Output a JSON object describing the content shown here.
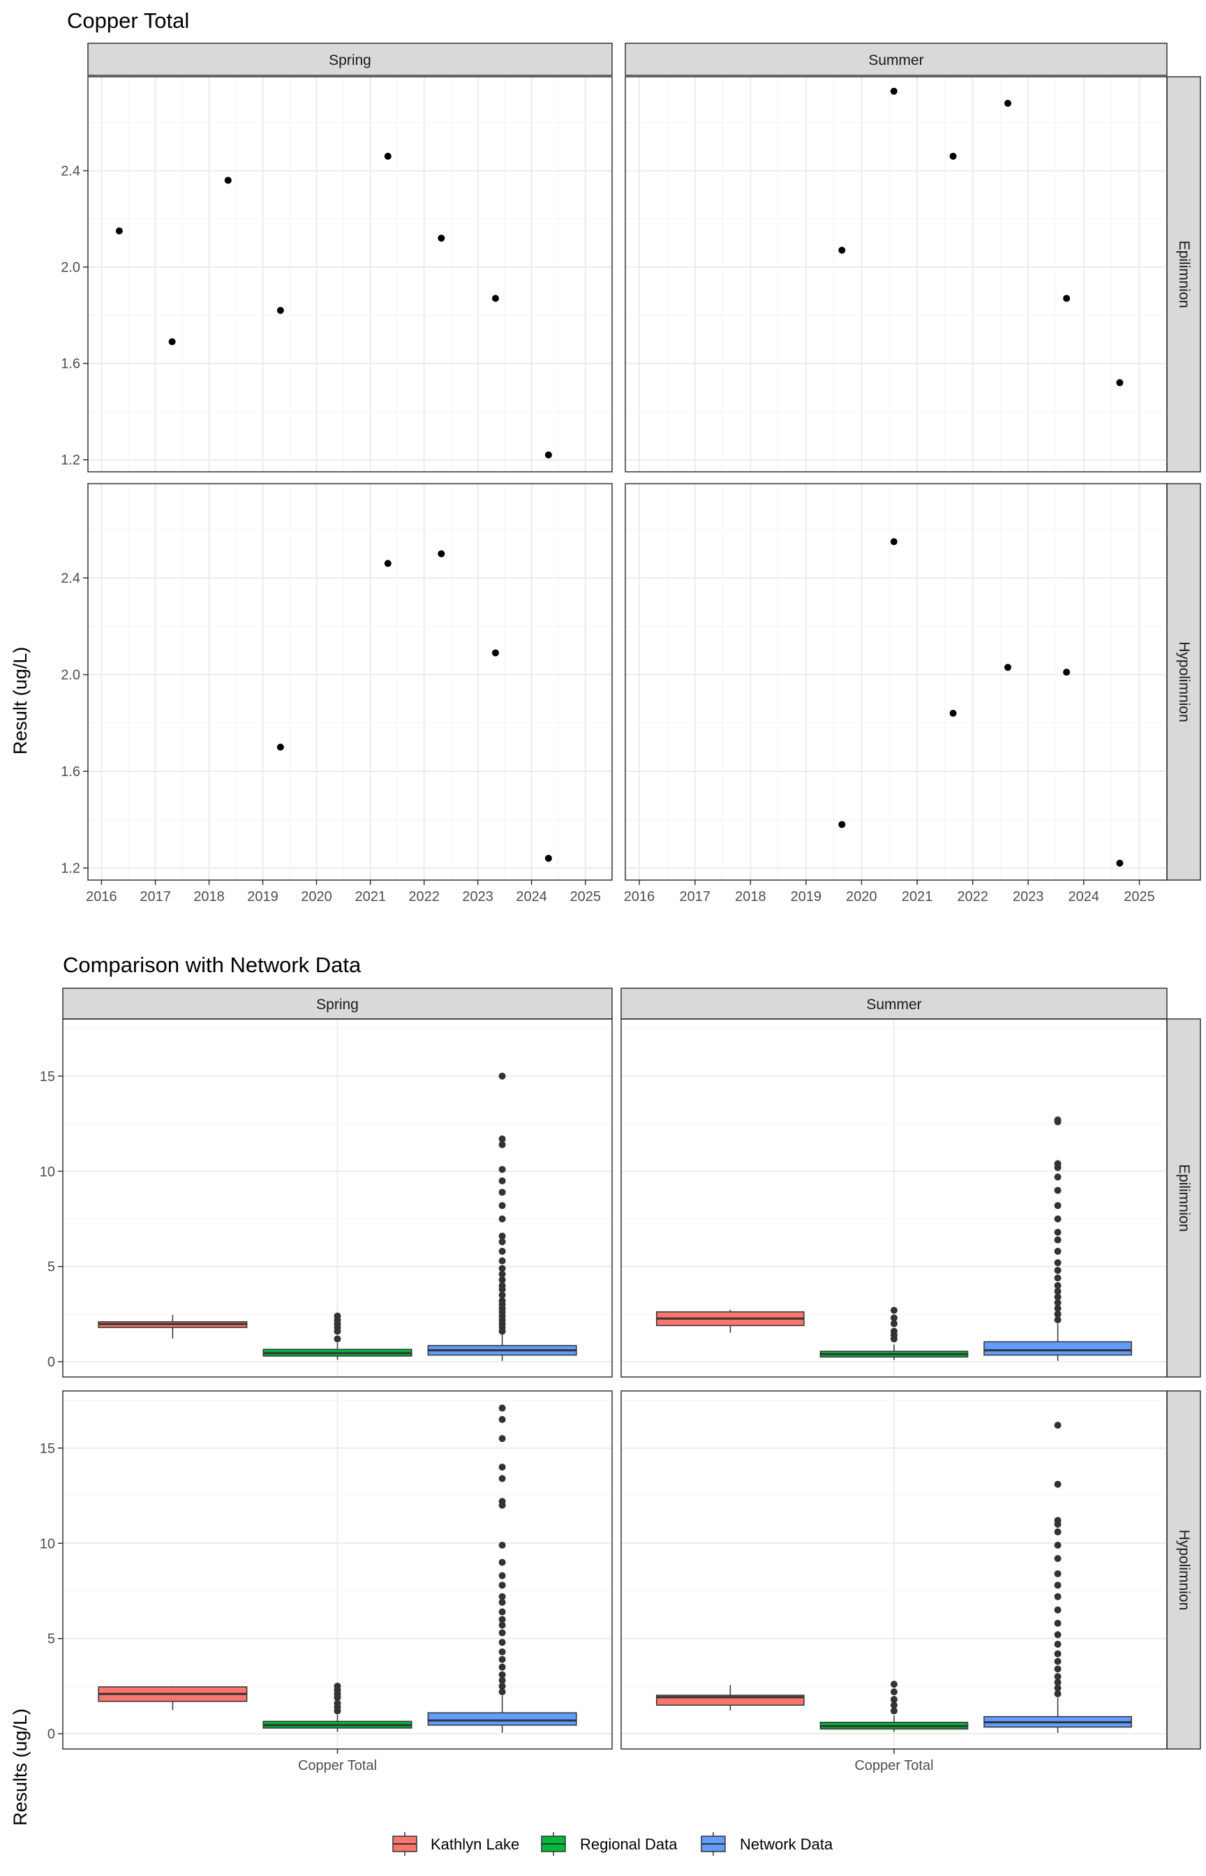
{
  "chart_data": [
    {
      "type": "scatter",
      "title": "Copper Total",
      "xlabel": "",
      "ylabel": "Result (ug/L)",
      "ylim": [
        1.15,
        2.79
      ],
      "xlim": [
        "2015-10-01",
        "2025-07-01"
      ],
      "y_ticks": [
        "1.2",
        "1.6",
        "2.0",
        "2.4"
      ],
      "x_ticks": [
        "2016",
        "2017",
        "2018",
        "2019",
        "2020",
        "2021",
        "2022",
        "2023",
        "2024",
        "2025"
      ],
      "columns": [
        "Spring",
        "Summer"
      ],
      "rows": [
        "Epilimnion",
        "Hypolimnion"
      ],
      "grid": true,
      "panels": [
        {
          "column": "Spring",
          "row": "Epilimnion",
          "points": [
            {
              "x": "2016-05-01",
              "y": 2.15
            },
            {
              "x": "2017-04-25",
              "y": 1.69
            },
            {
              "x": "2018-05-10",
              "y": 2.36
            },
            {
              "x": "2019-05-01",
              "y": 1.82
            },
            {
              "x": "2021-04-30",
              "y": 2.46
            },
            {
              "x": "2022-04-28",
              "y": 2.12
            },
            {
              "x": "2023-05-01",
              "y": 1.87
            },
            {
              "x": "2024-04-25",
              "y": 1.22
            }
          ]
        },
        {
          "column": "Summer",
          "row": "Epilimnion",
          "points": [
            {
              "x": "2019-08-25",
              "y": 2.07
            },
            {
              "x": "2020-08-01",
              "y": 2.73
            },
            {
              "x": "2021-08-25",
              "y": 2.46
            },
            {
              "x": "2022-08-20",
              "y": 2.68
            },
            {
              "x": "2023-09-10",
              "y": 1.87
            },
            {
              "x": "2024-08-25",
              "y": 1.52
            }
          ]
        },
        {
          "column": "Spring",
          "row": "Hypolimnion",
          "points": [
            {
              "x": "2019-05-01",
              "y": 1.7
            },
            {
              "x": "2021-04-30",
              "y": 2.46
            },
            {
              "x": "2022-04-28",
              "y": 2.5
            },
            {
              "x": "2023-05-01",
              "y": 2.09
            },
            {
              "x": "2024-04-25",
              "y": 1.24
            }
          ]
        },
        {
          "column": "Summer",
          "row": "Hypolimnion",
          "points": [
            {
              "x": "2019-08-25",
              "y": 1.38
            },
            {
              "x": "2020-08-01",
              "y": 2.55
            },
            {
              "x": "2021-08-25",
              "y": 1.84
            },
            {
              "x": "2022-08-20",
              "y": 2.03
            },
            {
              "x": "2023-09-10",
              "y": 2.01
            },
            {
              "x": "2024-08-25",
              "y": 1.22
            }
          ]
        }
      ]
    },
    {
      "type": "box",
      "title": "Comparison with Network Data",
      "xlabel": "",
      "ylabel": "Results (ug/L)",
      "ylim": [
        -0.8,
        18.0
      ],
      "y_ticks": [
        "0",
        "5",
        "10",
        "15"
      ],
      "category": "Copper Total",
      "columns": [
        "Spring",
        "Summer"
      ],
      "rows": [
        "Epilimnion",
        "Hypolimnion"
      ],
      "grid": true,
      "legend_position": "bottom",
      "series": [
        {
          "name": "Kathlyn Lake",
          "color": "#F8766D"
        },
        {
          "name": "Regional Data",
          "color": "#00BA38"
        },
        {
          "name": "Network Data",
          "color": "#619CFF"
        }
      ],
      "panels": [
        {
          "column": "Spring",
          "row": "Epilimnion",
          "boxes": [
            {
              "series": "Kathlyn Lake",
              "lower_whisker": 1.22,
              "q1": 1.8,
              "median": 1.98,
              "q3": 2.1,
              "upper_whisker": 2.46,
              "outliers": []
            },
            {
              "series": "Regional Data",
              "lower_whisker": 0.1,
              "q1": 0.3,
              "median": 0.45,
              "q3": 0.65,
              "upper_whisker": 1.0,
              "outliers": [
                1.2,
                1.6,
                1.8,
                2.0,
                2.2,
                2.4
              ]
            },
            {
              "series": "Network Data",
              "lower_whisker": 0.05,
              "q1": 0.35,
              "median": 0.6,
              "q3": 0.85,
              "upper_whisker": 1.5,
              "outliers": [
                1.6,
                1.8,
                2.0,
                2.2,
                2.4,
                2.6,
                2.8,
                3.0,
                3.2,
                3.5,
                3.8,
                4.0,
                4.3,
                4.6,
                4.9,
                5.3,
                5.8,
                6.3,
                6.6,
                7.5,
                8.2,
                8.9,
                9.5,
                10.1,
                11.4,
                11.7,
                15.0
              ]
            }
          ]
        },
        {
          "column": "Summer",
          "row": "Epilimnion",
          "boxes": [
            {
              "series": "Kathlyn Lake",
              "lower_whisker": 1.52,
              "q1": 1.9,
              "median": 2.27,
              "q3": 2.62,
              "upper_whisker": 2.73,
              "outliers": []
            },
            {
              "series": "Regional Data",
              "lower_whisker": 0.1,
              "q1": 0.25,
              "median": 0.4,
              "q3": 0.55,
              "upper_whisker": 0.9,
              "outliers": [
                1.2,
                1.4,
                1.6,
                2.0,
                2.3,
                2.7
              ]
            },
            {
              "series": "Network Data",
              "lower_whisker": 0.05,
              "q1": 0.35,
              "median": 0.6,
              "q3": 1.05,
              "upper_whisker": 2.0,
              "outliers": [
                2.2,
                2.5,
                2.8,
                3.1,
                3.4,
                3.7,
                4.0,
                4.4,
                4.8,
                5.2,
                5.8,
                6.4,
                6.8,
                7.5,
                8.2,
                9.0,
                9.7,
                10.2,
                10.4,
                12.6,
                12.7
              ]
            }
          ]
        },
        {
          "column": "Spring",
          "row": "Hypolimnion",
          "boxes": [
            {
              "series": "Kathlyn Lake",
              "lower_whisker": 1.24,
              "q1": 1.7,
              "median": 2.09,
              "q3": 2.46,
              "upper_whisker": 2.5,
              "outliers": []
            },
            {
              "series": "Regional Data",
              "lower_whisker": 0.1,
              "q1": 0.3,
              "median": 0.45,
              "q3": 0.65,
              "upper_whisker": 1.0,
              "outliers": [
                1.2,
                1.4,
                1.6,
                1.9,
                2.1,
                2.3,
                2.5
              ]
            },
            {
              "series": "Network Data",
              "lower_whisker": 0.05,
              "q1": 0.45,
              "median": 0.7,
              "q3": 1.1,
              "upper_whisker": 2.0,
              "outliers": [
                2.2,
                2.5,
                2.8,
                3.1,
                3.5,
                3.9,
                4.3,
                4.8,
                5.3,
                5.7,
                6.0,
                6.4,
                6.9,
                7.2,
                7.8,
                8.3,
                9.0,
                9.9,
                12.0,
                12.2,
                13.4,
                14.0,
                15.5,
                16.5,
                17.1
              ]
            }
          ]
        },
        {
          "column": "Summer",
          "row": "Hypolimnion",
          "boxes": [
            {
              "series": "Kathlyn Lake",
              "lower_whisker": 1.22,
              "q1": 1.5,
              "median": 1.92,
              "q3": 2.02,
              "upper_whisker": 2.55,
              "outliers": []
            },
            {
              "series": "Regional Data",
              "lower_whisker": 0.1,
              "q1": 0.25,
              "median": 0.4,
              "q3": 0.6,
              "upper_whisker": 0.95,
              "outliers": [
                1.2,
                1.5,
                1.8,
                2.2,
                2.6
              ]
            },
            {
              "series": "Network Data",
              "lower_whisker": 0.05,
              "q1": 0.35,
              "median": 0.6,
              "q3": 0.9,
              "upper_whisker": 1.9,
              "outliers": [
                2.1,
                2.4,
                2.7,
                3.0,
                3.4,
                3.8,
                4.2,
                4.7,
                5.2,
                5.8,
                6.5,
                7.2,
                7.8,
                8.4,
                9.2,
                9.9,
                10.6,
                11.0,
                11.2,
                13.1,
                16.2
              ]
            }
          ]
        }
      ]
    }
  ]
}
